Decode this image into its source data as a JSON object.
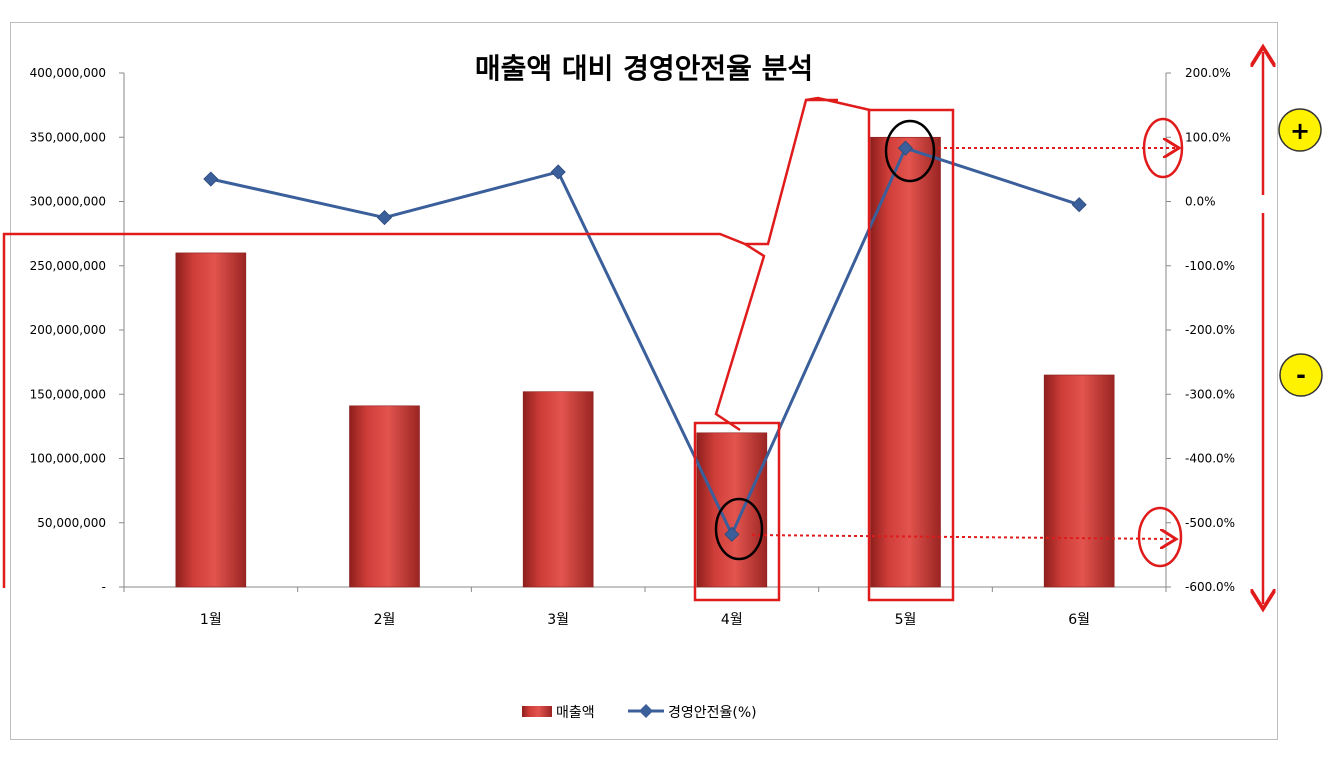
{
  "chart_data": {
    "type": "bar",
    "title": "매출액 대비 경영안전율 분석",
    "categories": [
      "1월",
      "2월",
      "3월",
      "4월",
      "5월",
      "6월"
    ],
    "series": [
      {
        "name": "매출액",
        "type": "bar",
        "axis": "left",
        "values": [
          260000000,
          141000000,
          152000000,
          120000000,
          350000000,
          165000000
        ],
        "color": "#c0302e"
      },
      {
        "name": "경영안전율(%)",
        "type": "line",
        "axis": "right",
        "values": [
          35,
          -25,
          46,
          -518,
          83,
          -5
        ],
        "color": "#3b5f9a"
      }
    ],
    "y_left": {
      "range": [
        0,
        400000000
      ],
      "ticks": [
        "-",
        "50,000,000",
        "100,000,000",
        "150,000,000",
        "200,000,000",
        "250,000,000",
        "300,000,000",
        "350,000,000",
        "400,000,000"
      ]
    },
    "y_right": {
      "range": [
        -600,
        200
      ],
      "ticks": [
        "-600.0%",
        "-500.0%",
        "-400.0%",
        "-300.0%",
        "-200.0%",
        "-100.0%",
        "0.0%",
        "100.0%",
        "200.0%"
      ]
    },
    "grid": false,
    "legend": "bottom",
    "annotations": {
      "plus_badge": "+",
      "minus_badge": "-",
      "highlight_color": "#e01b1b",
      "circle_color": "#000000"
    }
  }
}
